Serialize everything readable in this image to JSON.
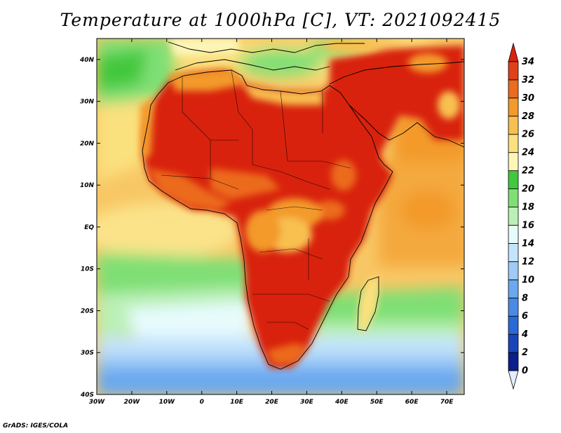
{
  "title": "Temperature at 1000hPa [C], VT: 2021092415",
  "credit": "GrADS: IGES/COLA",
  "map": {
    "projection": "latlon",
    "lon_range": [
      -30,
      75
    ],
    "lat_range": [
      -40,
      45
    ],
    "x_ticks": [
      "30W",
      "20W",
      "10W",
      "0",
      "10E",
      "20E",
      "30E",
      "40E",
      "50E",
      "60E",
      "70E"
    ],
    "y_ticks": [
      "40S",
      "30S",
      "20S",
      "10S",
      "EQ",
      "10N",
      "20N",
      "30N",
      "40N"
    ],
    "field": "Temperature",
    "units": "C",
    "region": "Africa"
  },
  "colorbar": {
    "labels": [
      "0",
      "2",
      "4",
      "6",
      "8",
      "10",
      "12",
      "14",
      "16",
      "18",
      "20",
      "22",
      "24",
      "26",
      "28",
      "30",
      "32",
      "34"
    ],
    "colors": [
      "#e6ecff",
      "#0c1f8c",
      "#1846b8",
      "#2a6ad8",
      "#4a8ae6",
      "#6ba8ef",
      "#9ecbf7",
      "#c4e4fb",
      "#e7fbfd",
      "#baf0b6",
      "#7fdf74",
      "#42c83d",
      "#fdf6b8",
      "#fbe07e",
      "#f8c050",
      "#f39a2a",
      "#ec6b1d",
      "#e0401a",
      "#d8230e"
    ]
  }
}
